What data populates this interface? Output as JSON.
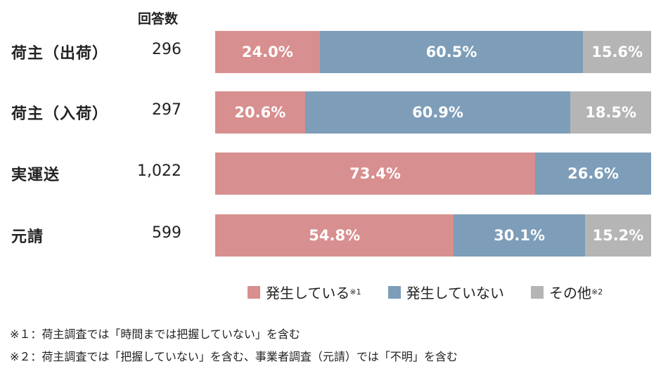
{
  "chart_data": {
    "type": "bar",
    "orientation": "horizontal-stacked-100",
    "count_header": "回答数",
    "categories": [
      "荷主（出荷）",
      "荷主（入荷）",
      "実運送",
      "元請"
    ],
    "counts": [
      "296",
      "297",
      "1,022",
      "599"
    ],
    "series": [
      {
        "name": "発生している",
        "note": "※1",
        "color": "#d88f8f",
        "values": [
          24.0,
          20.6,
          73.4,
          54.8
        ]
      },
      {
        "name": "発生していない",
        "note": "",
        "color": "#7d9db8",
        "values": [
          60.5,
          60.9,
          26.6,
          30.1
        ]
      },
      {
        "name": "その他",
        "note": "※2",
        "color": "#b5b5b5",
        "values": [
          15.6,
          18.5,
          0,
          15.2
        ]
      }
    ],
    "value_suffix": "%",
    "legend_position": "bottom-right"
  },
  "footnotes": [
    "※１：荷主調査では「時間までは把握していない」を含む",
    "※２：荷主調査では「把握していない」を含む、事業者調査（元請）では「不明」を含む"
  ]
}
